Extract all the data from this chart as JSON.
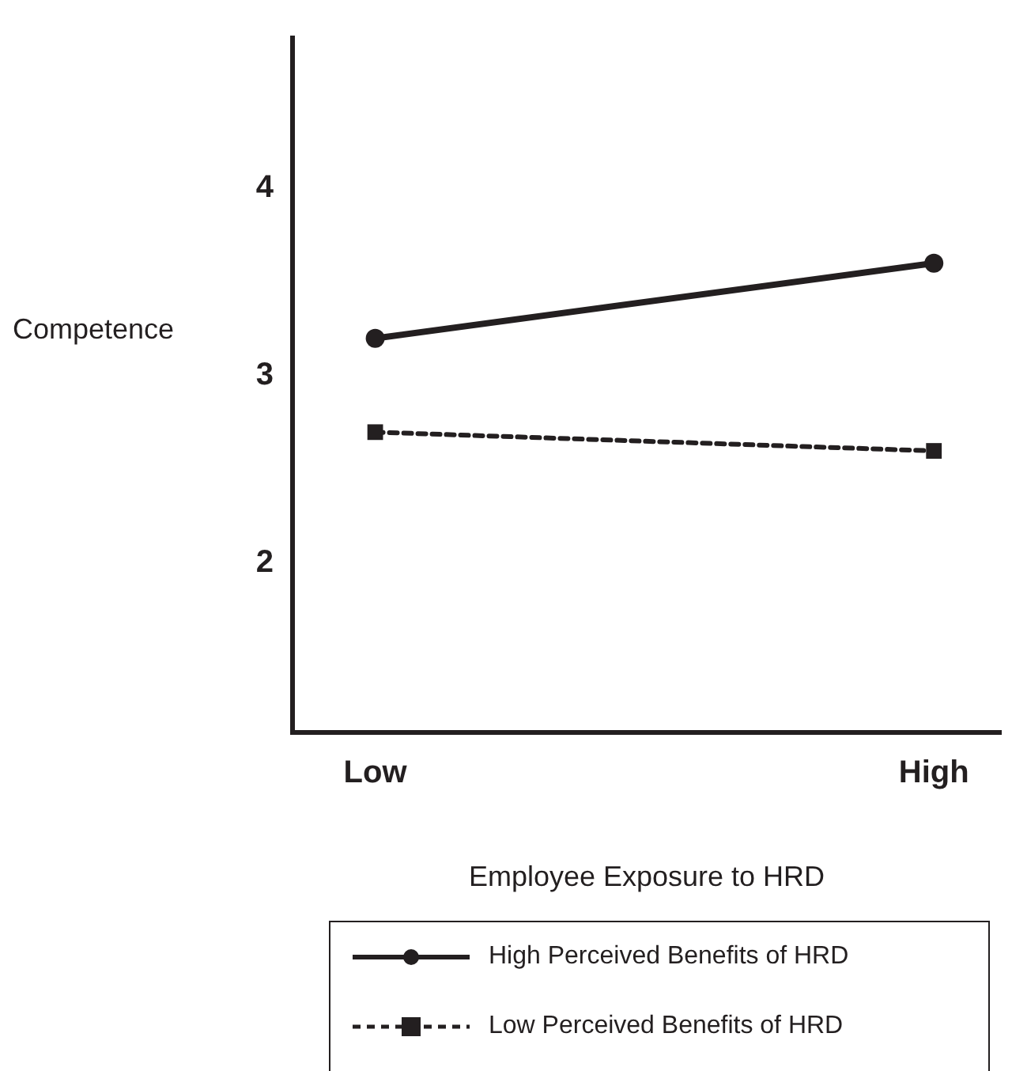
{
  "chart_data": {
    "type": "line",
    "xlabel": "Employee Exposure to HRD",
    "ylabel": "Competence",
    "categories": [
      "Low",
      "High"
    ],
    "series": [
      {
        "name": "High Perceived Benefits of HRD",
        "color": "#231f20",
        "values": [
          3.2,
          3.6
        ],
        "marker": "circle",
        "line_style": "solid"
      },
      {
        "name": "Low Perceived Benefits of HRD",
        "color": "#231f20",
        "values": [
          2.7,
          2.6
        ],
        "marker": "square",
        "line_style": "dotted"
      }
    ],
    "ylim": [
      1.1,
      4.8
    ],
    "yticks": [
      2,
      3,
      4
    ],
    "grid": false,
    "legend": "bottom"
  }
}
